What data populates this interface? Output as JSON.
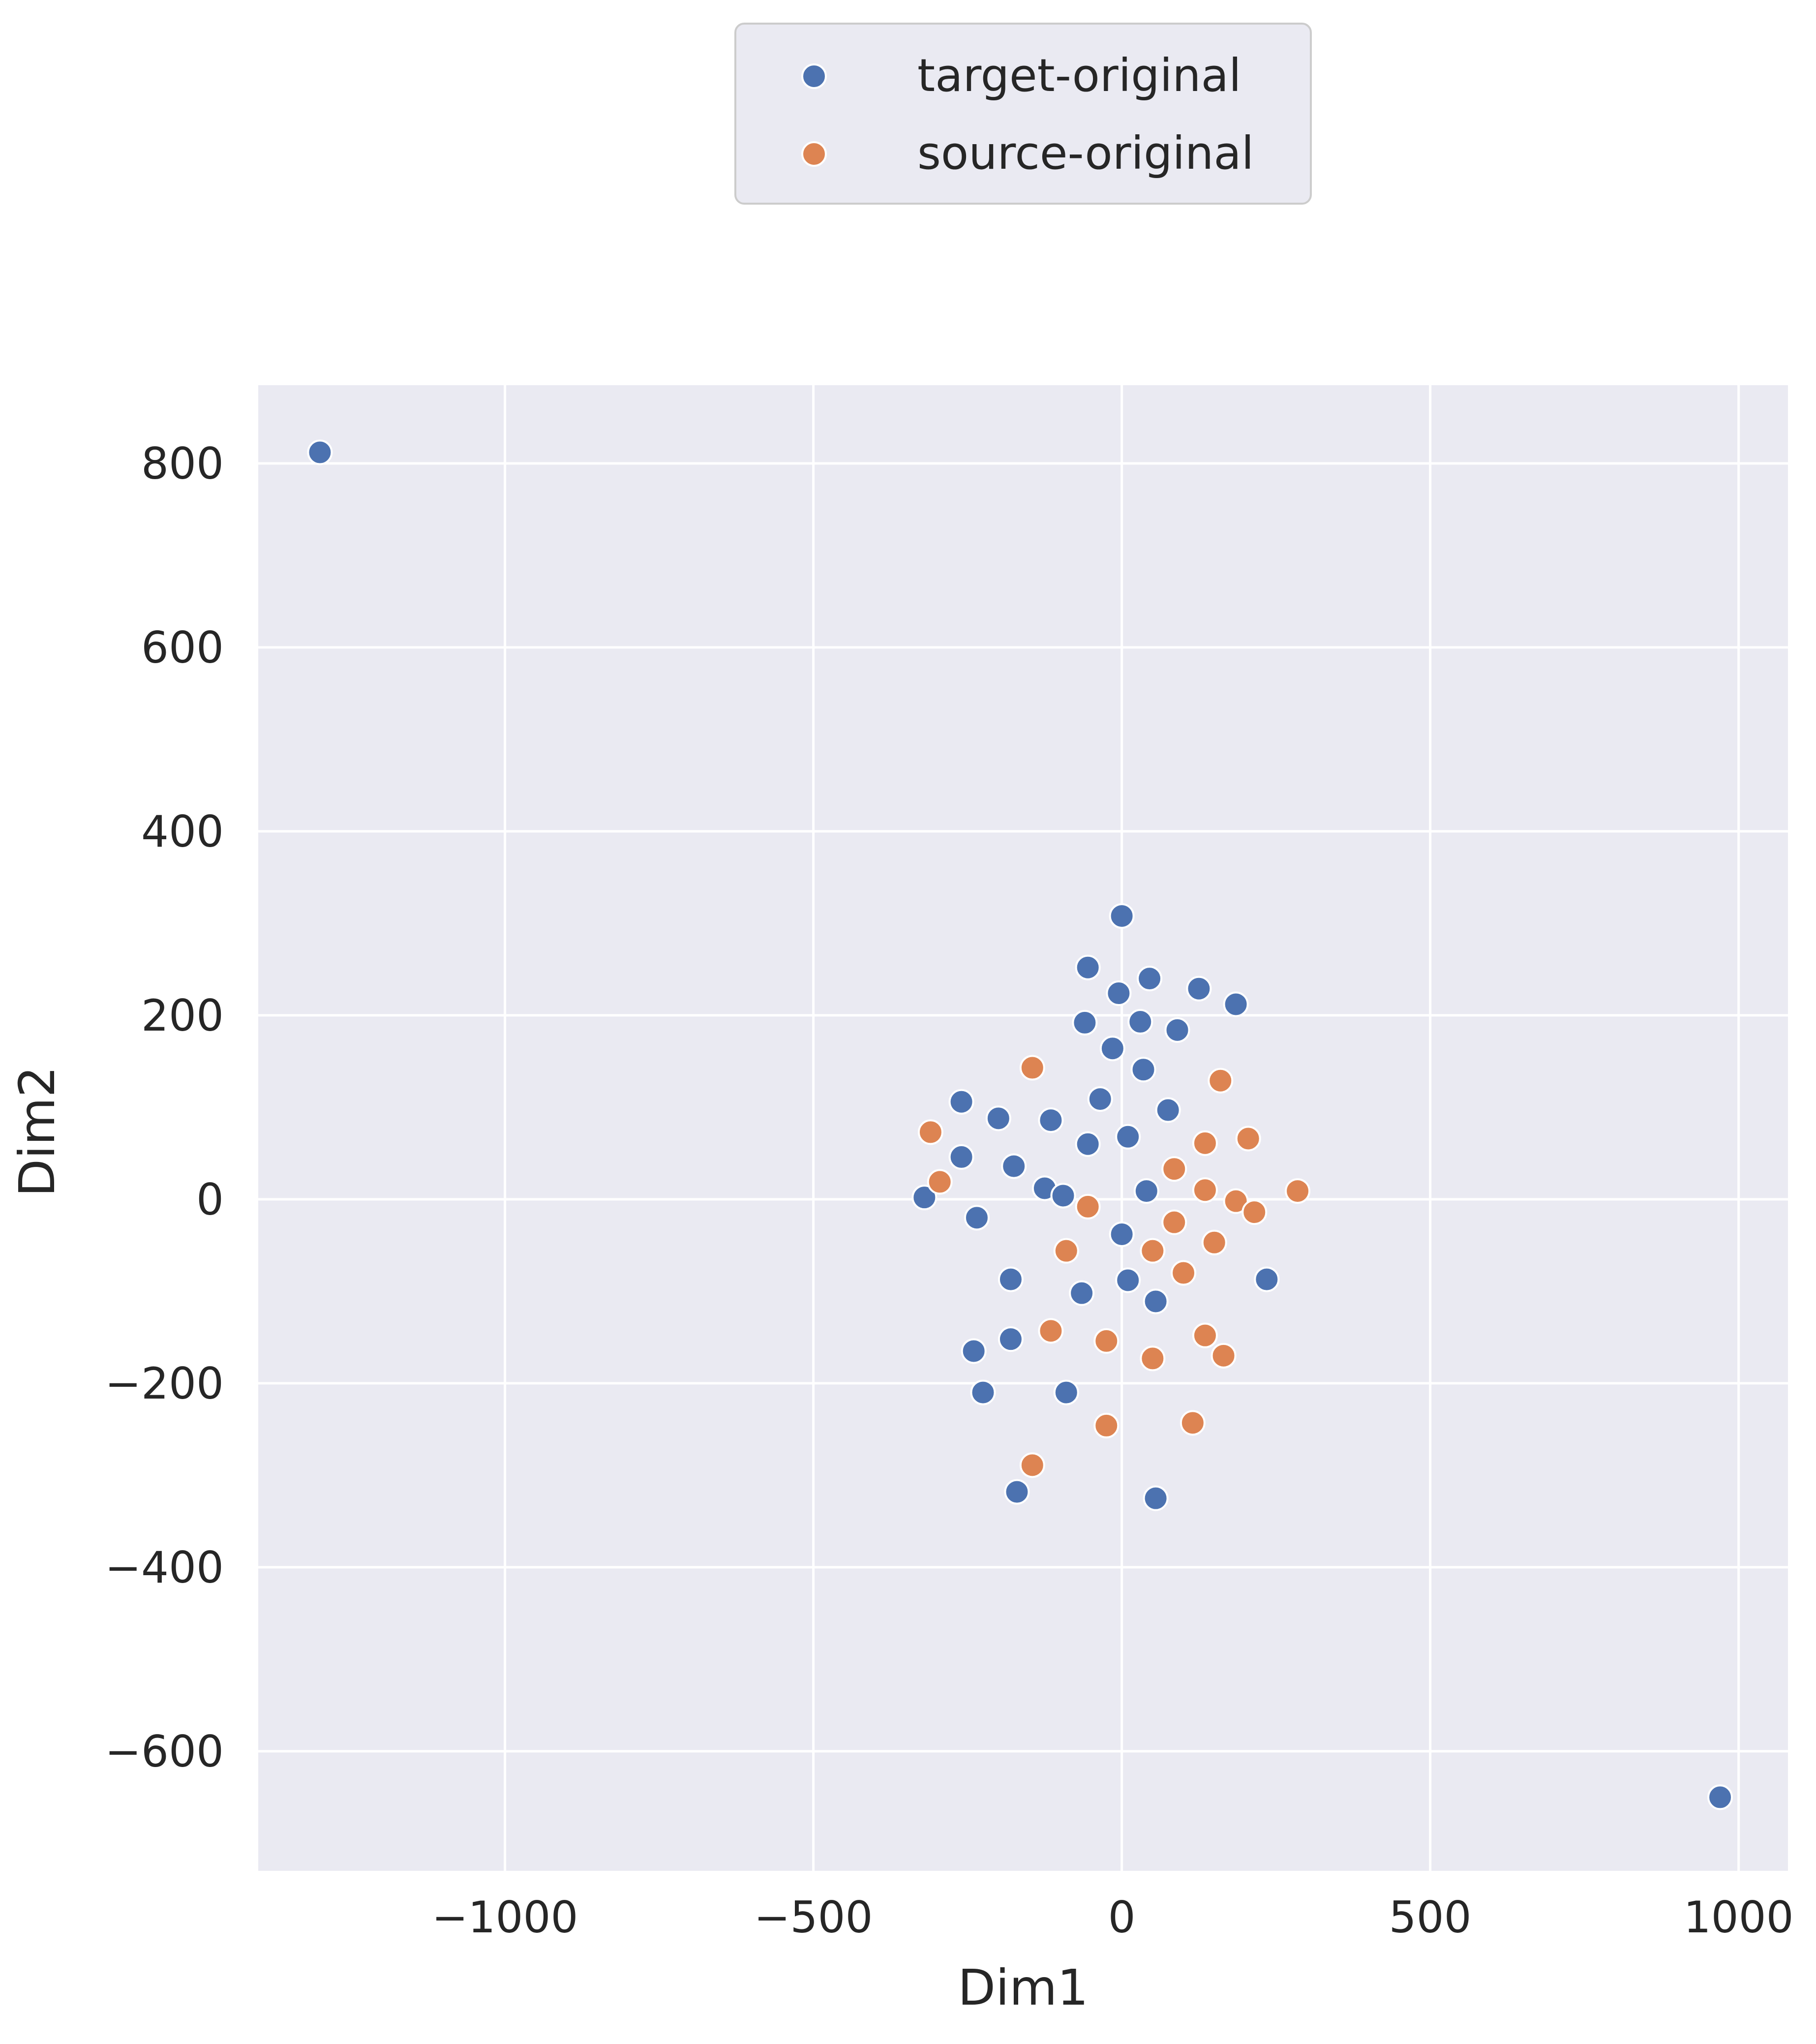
{
  "chart_data": {
    "type": "scatter",
    "title": "",
    "xlabel": "Dim1",
    "ylabel": "Dim2",
    "xlim": [
      -1400,
      1080
    ],
    "ylim": [
      -730,
      885
    ],
    "x_ticks": [
      -1000,
      -500,
      0,
      500,
      1000
    ],
    "y_ticks": [
      -600,
      -400,
      -200,
      0,
      200,
      400,
      600,
      800
    ],
    "x_tick_labels": [
      "−1000",
      "−500",
      "0",
      "500",
      "1000"
    ],
    "y_tick_labels": [
      "−600",
      "−400",
      "−200",
      "0",
      "200",
      "400",
      "600",
      "800"
    ],
    "grid": true,
    "legend_position": "top-center, outside above plot",
    "series": [
      {
        "name": "target-original",
        "color": "#4c72b0",
        "points": [
          [
            -1300,
            812
          ],
          [
            970,
            -650
          ],
          [
            0,
            308
          ],
          [
            -55,
            252
          ],
          [
            45,
            240
          ],
          [
            -5,
            224
          ],
          [
            125,
            229
          ],
          [
            185,
            212
          ],
          [
            -60,
            192
          ],
          [
            30,
            193
          ],
          [
            90,
            184
          ],
          [
            -15,
            164
          ],
          [
            35,
            141
          ],
          [
            -35,
            109
          ],
          [
            -260,
            106
          ],
          [
            75,
            97
          ],
          [
            -200,
            88
          ],
          [
            -115,
            86
          ],
          [
            10,
            68
          ],
          [
            -55,
            60
          ],
          [
            -260,
            46
          ],
          [
            -175,
            36
          ],
          [
            -125,
            12
          ],
          [
            -95,
            4
          ],
          [
            -320,
            2
          ],
          [
            40,
            9
          ],
          [
            -235,
            -20
          ],
          [
            0,
            -38
          ],
          [
            -180,
            -87
          ],
          [
            10,
            -88
          ],
          [
            235,
            -87
          ],
          [
            -65,
            -102
          ],
          [
            55,
            -111
          ],
          [
            -180,
            -152
          ],
          [
            -240,
            -165
          ],
          [
            -225,
            -210
          ],
          [
            -90,
            -210
          ],
          [
            -170,
            -318
          ],
          [
            55,
            -325
          ]
        ]
      },
      {
        "name": "source-original",
        "color": "#dd8452",
        "points": [
          [
            -145,
            143
          ],
          [
            160,
            129
          ],
          [
            -310,
            73
          ],
          [
            135,
            61
          ],
          [
            205,
            66
          ],
          [
            85,
            33
          ],
          [
            -295,
            19
          ],
          [
            285,
            9
          ],
          [
            135,
            10
          ],
          [
            185,
            -2
          ],
          [
            -55,
            -8
          ],
          [
            215,
            -14
          ],
          [
            85,
            -25
          ],
          [
            150,
            -47
          ],
          [
            -90,
            -56
          ],
          [
            50,
            -56
          ],
          [
            100,
            -80
          ],
          [
            -115,
            -143
          ],
          [
            -25,
            -154
          ],
          [
            135,
            -148
          ],
          [
            165,
            -170
          ],
          [
            50,
            -173
          ],
          [
            -25,
            -246
          ],
          [
            115,
            -243
          ],
          [
            -145,
            -289
          ]
        ]
      }
    ]
  }
}
